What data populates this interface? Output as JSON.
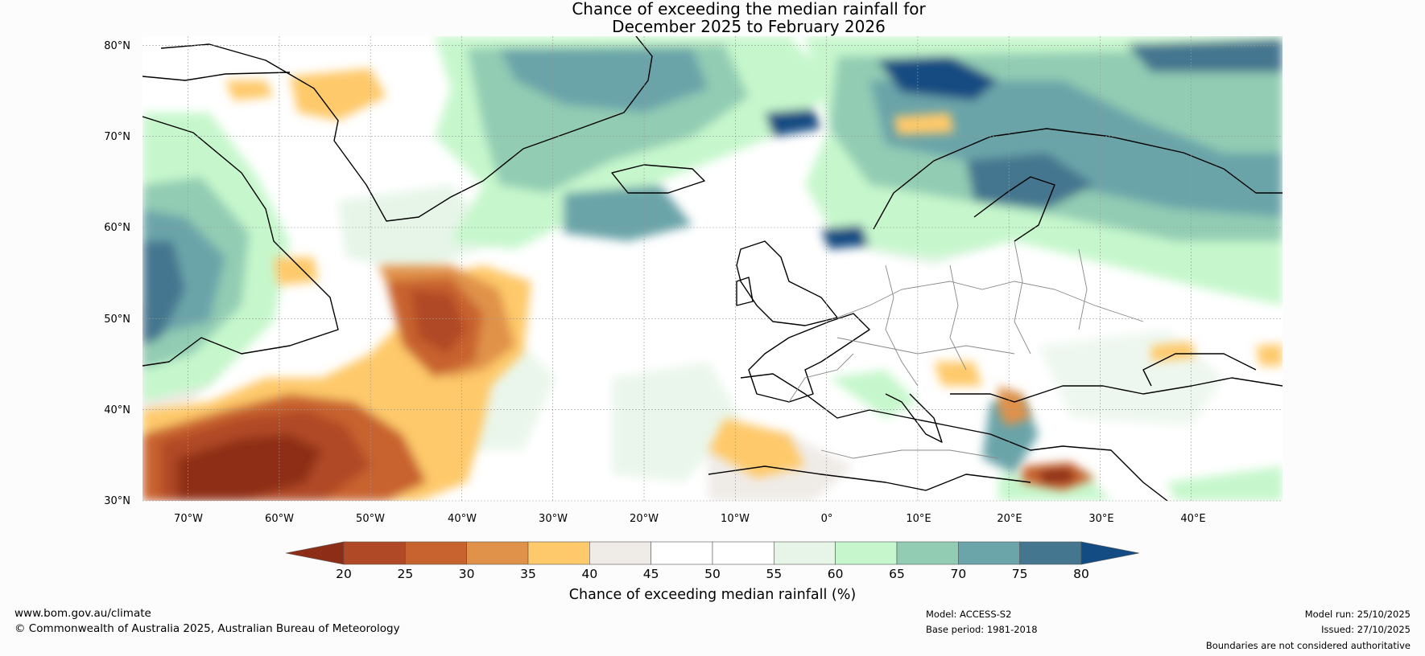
{
  "title": {
    "line1": "Chance of exceeding the median rainfall for",
    "line2": "December 2025 to February 2026"
  },
  "map": {
    "extent": {
      "lon_min": -75,
      "lon_max": 50,
      "lat_min": 30,
      "lat_max": 81
    },
    "lat_ticks": [
      "80°N",
      "70°N",
      "60°N",
      "50°N",
      "40°N",
      "30°N"
    ],
    "lon_ticks": [
      "70°W",
      "60°W",
      "50°W",
      "40°W",
      "30°W",
      "20°W",
      "10°W",
      "0°",
      "10°E",
      "20°E",
      "30°E",
      "40°E"
    ]
  },
  "colorbar": {
    "ticks": [
      "20",
      "25",
      "30",
      "35",
      "40",
      "45",
      "50",
      "55",
      "60",
      "65",
      "70",
      "75",
      "80"
    ],
    "colors": [
      "#8e2d17",
      "#b04a26",
      "#c8622e",
      "#e0924a",
      "#fec96b",
      "#efebe7",
      "#ffffff",
      "#ffffff",
      "#e6f5e8",
      "#c6f7cc",
      "#92ccb3",
      "#6ba4a9",
      "#44768f",
      "#134c82"
    ],
    "label": "Chance of exceeding median rainfall (%)"
  },
  "footer": {
    "website": "www.bom.gov.au/climate",
    "copyright": "© Commonwealth of Australia 2025, Australian Bureau of Meteorology",
    "model": "Model: ACCESS-S2",
    "base_period": "Base period: 1981-2018",
    "model_run": "Model run: 25/10/2025",
    "issued": "Issued: 27/10/2025",
    "disclaimer": "Boundaries are not considered authoritative"
  }
}
